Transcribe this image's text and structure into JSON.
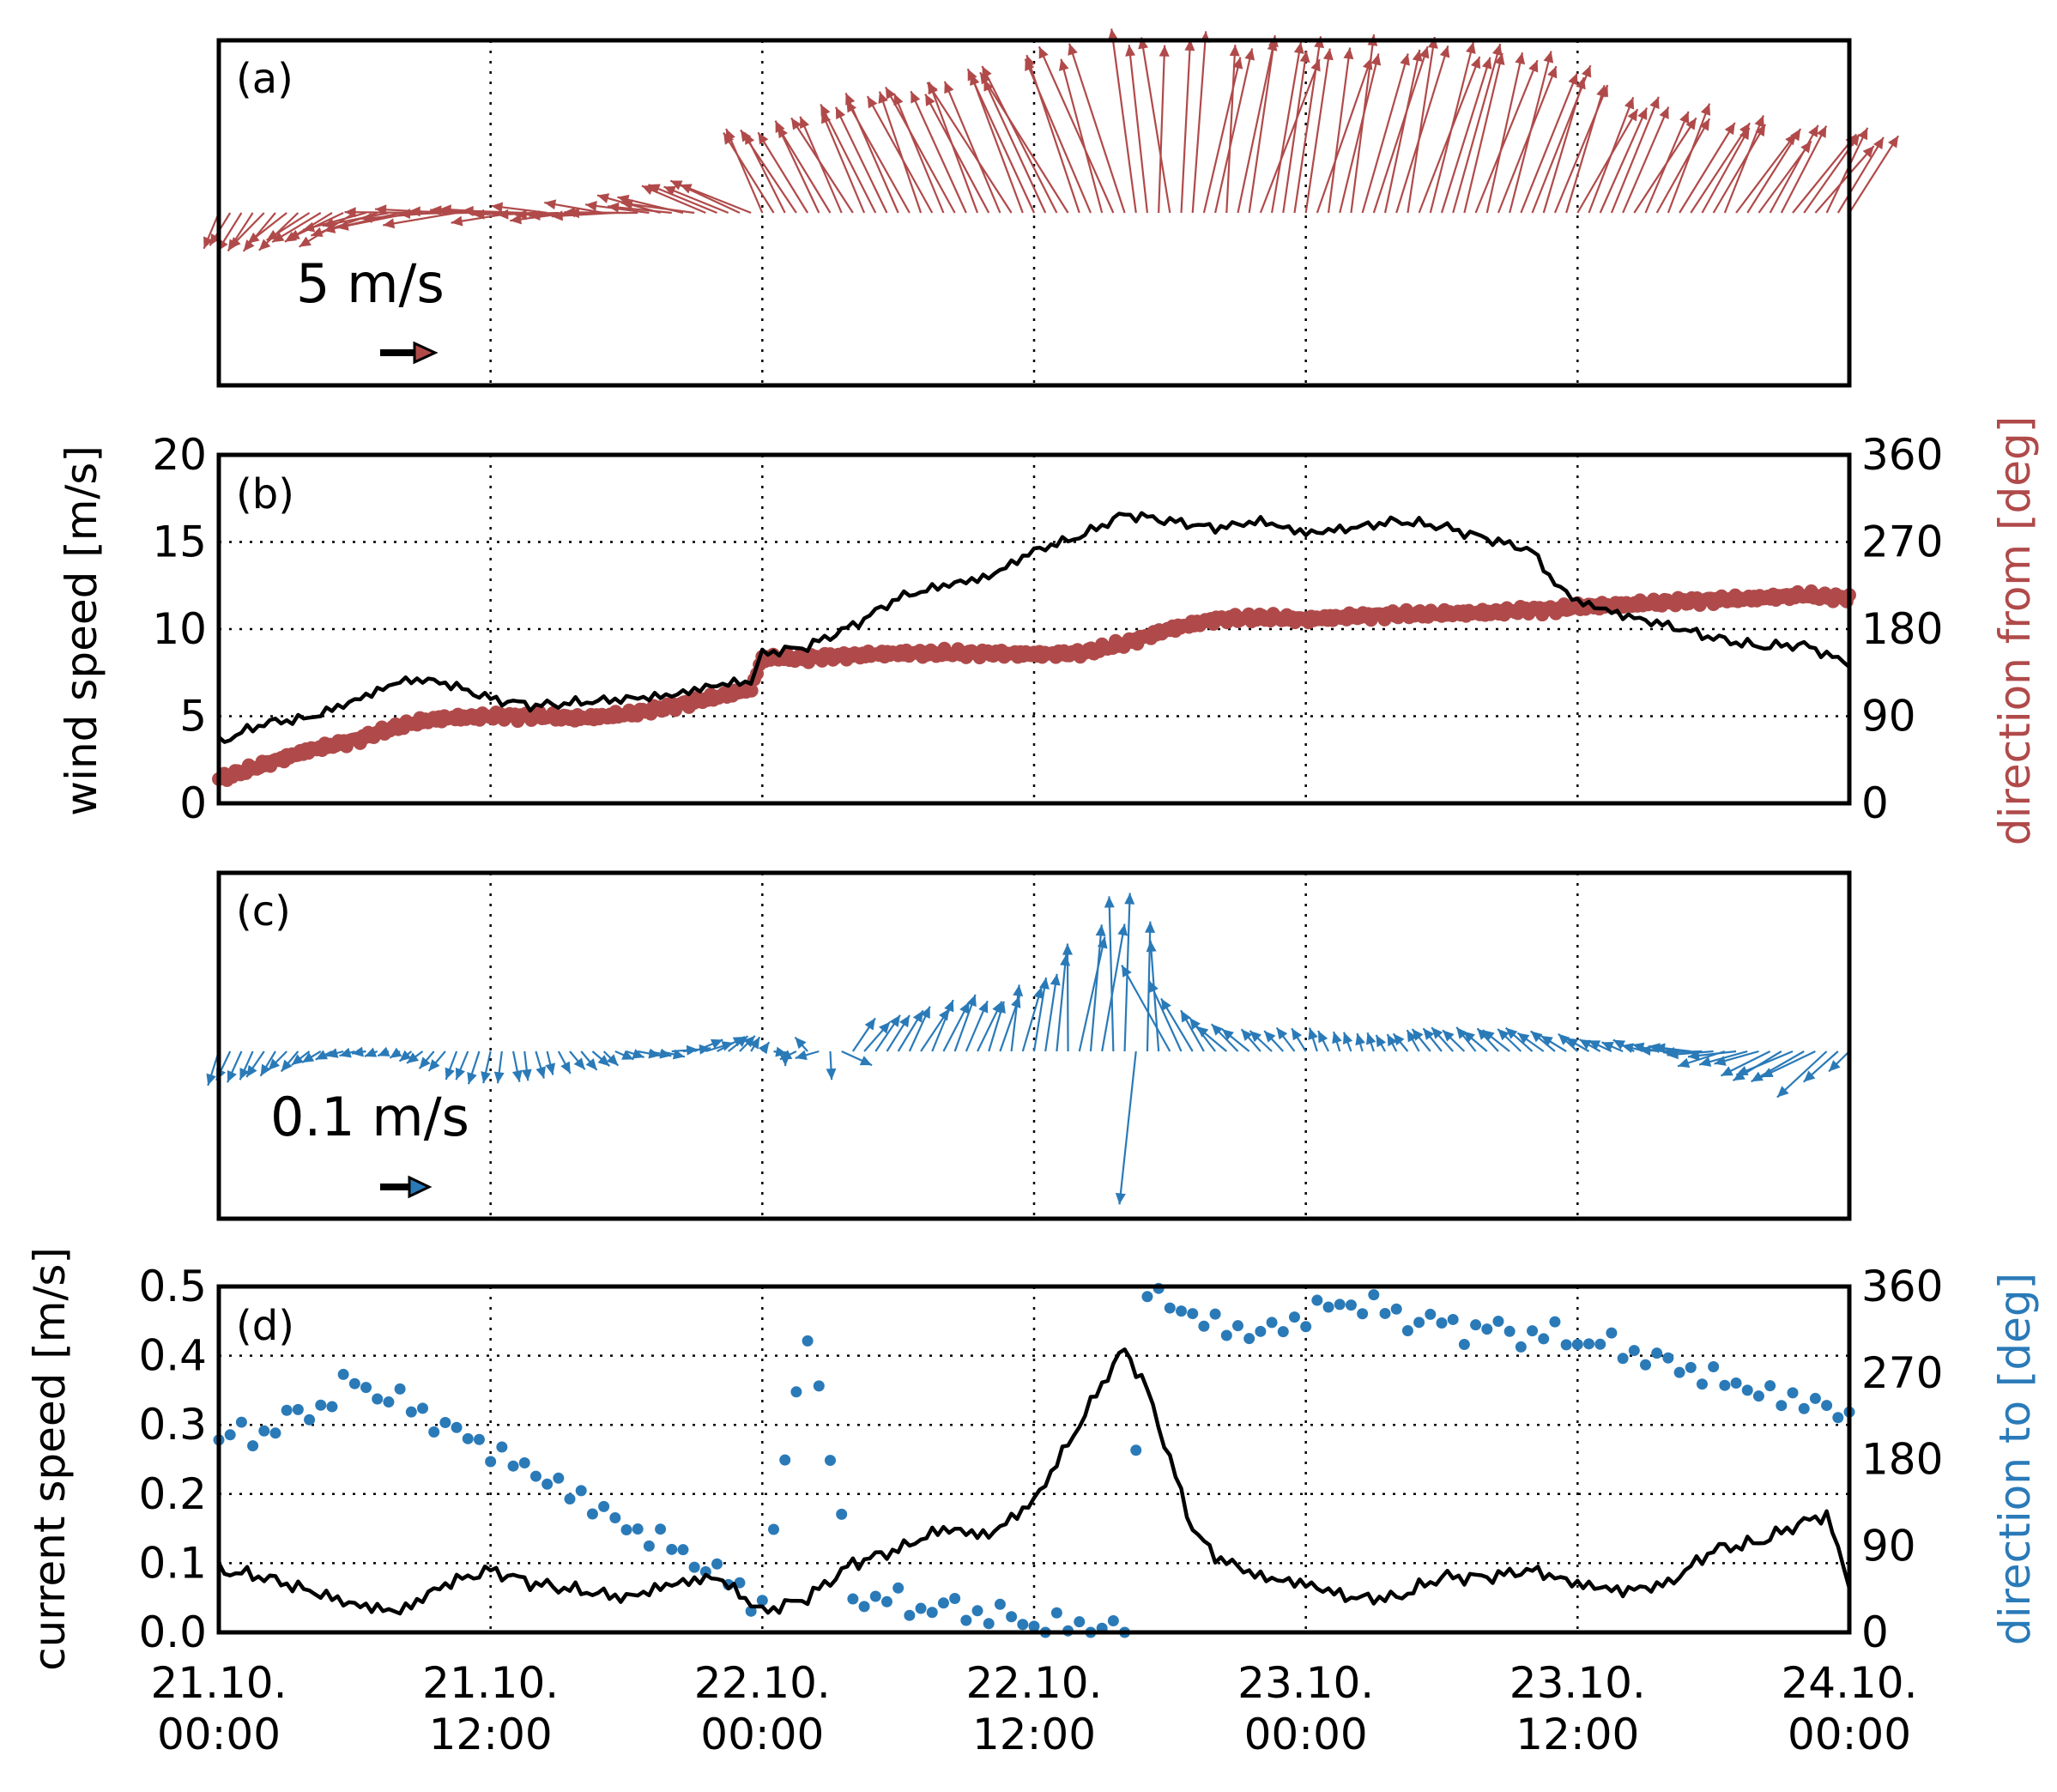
{
  "chart_data": [
    {
      "panel": "(a)",
      "type": "quiver",
      "quantity": "wind vector",
      "scale_label": "5 m/s",
      "scale_value": 5,
      "color": "#b04a4a",
      "note": "vectors drawn from wind speed and direction-from series in panel (b), every 30 minutes"
    },
    {
      "panel": "(b)",
      "type": "line",
      "ylabel": "wind speed [m/s]",
      "ylabel_right": "direction from [deg]",
      "ylim": [
        0,
        20
      ],
      "ylim_right": [
        0,
        360
      ],
      "yticks": [
        "0",
        "5",
        "10",
        "15",
        "20"
      ],
      "yticks_right": [
        "0",
        "90",
        "180",
        "270",
        "360"
      ],
      "x_hours": [
        0,
        2,
        4,
        6,
        8,
        9,
        10,
        12,
        14,
        16,
        18,
        20,
        22,
        23.5,
        24,
        26,
        28,
        30,
        32,
        34,
        36,
        38,
        40,
        42,
        44,
        46,
        48,
        50,
        52,
        54,
        56,
        58,
        59,
        60,
        62,
        64,
        66,
        68,
        70,
        72
      ],
      "series": [
        {
          "name": "wind speed",
          "axis": "left",
          "color": "#000000",
          "values": [
            3.5,
            4.6,
            4.9,
            5.9,
            7.0,
            7.1,
            6.9,
            6.0,
            5.6,
            5.8,
            6.0,
            6.2,
            6.8,
            7.0,
            8.6,
            9.0,
            10.2,
            11.8,
            12.5,
            13.0,
            14.5,
            15.3,
            16.6,
            16.2,
            15.8,
            16.2,
            15.5,
            15.8,
            16.2,
            15.9,
            15.2,
            14.5,
            12.6,
            11.6,
            10.8,
            10.2,
            9.5,
            9.0,
            9.1,
            8.0
          ]
        },
        {
          "name": "direction from",
          "axis": "right",
          "color": "#b04a4a",
          "values": [
            25,
            40,
            55,
            65,
            80,
            85,
            88,
            90,
            90,
            88,
            92,
            100,
            110,
            118,
            150,
            150,
            153,
            155,
            155,
            155,
            154,
            155,
            165,
            180,
            190,
            192,
            190,
            193,
            195,
            196,
            197,
            200,
            200,
            203,
            205,
            208,
            210,
            212,
            215,
            212
          ]
        }
      ]
    },
    {
      "panel": "(c)",
      "type": "quiver",
      "quantity": "current vector",
      "scale_label": "0.1 m/s",
      "scale_value": 0.1,
      "color": "#2a7ab8",
      "note": "vectors drawn from current speed and direction-to series in panel (d), every 30 minutes"
    },
    {
      "panel": "(d)",
      "type": "line",
      "ylabel": "current speed [m/s]",
      "ylabel_right": "direction to [deg]",
      "ylim": [
        0,
        0.5
      ],
      "ylim_right": [
        0,
        360
      ],
      "yticks": [
        "0.0",
        "0.1",
        "0.2",
        "0.3",
        "0.4",
        "0.5"
      ],
      "yticks_right": [
        "0",
        "90",
        "180",
        "270",
        "360"
      ],
      "x_hours": [
        0,
        2,
        4,
        6,
        8,
        10,
        12,
        14,
        16,
        18,
        20,
        22,
        24,
        26,
        28,
        30,
        32,
        34,
        36,
        38,
        39,
        40,
        41,
        42,
        43,
        44,
        46,
        48,
        50,
        52,
        54,
        56,
        58,
        60,
        62,
        64,
        66,
        68,
        70,
        71,
        72
      ],
      "series": [
        {
          "name": "current speed",
          "axis": "left",
          "color": "#000000",
          "values": [
            0.09,
            0.08,
            0.06,
            0.04,
            0.03,
            0.07,
            0.09,
            0.07,
            0.06,
            0.05,
            0.07,
            0.08,
            0.03,
            0.05,
            0.1,
            0.12,
            0.15,
            0.14,
            0.19,
            0.3,
            0.36,
            0.41,
            0.35,
            0.25,
            0.15,
            0.11,
            0.08,
            0.07,
            0.05,
            0.05,
            0.08,
            0.08,
            0.09,
            0.07,
            0.06,
            0.07,
            0.12,
            0.13,
            0.16,
            0.17,
            0.07
          ]
        },
        {
          "name": "direction to",
          "axis": "right",
          "color": "#2a7ab8",
          "values": [
            200,
            210,
            230,
            260,
            240,
            215,
            190,
            165,
            140,
            110,
            90,
            60,
            30,
            320,
            40,
            30,
            25,
            20,
            8,
            6,
            5,
            5,
            360,
            340,
            330,
            320,
            310,
            330,
            345,
            330,
            320,
            315,
            310,
            305,
            295,
            280,
            265,
            250,
            240,
            235,
            225
          ]
        }
      ]
    }
  ],
  "xaxis": {
    "xlim_hours": [
      0,
      72
    ],
    "ticks": [
      {
        "line1": "21.10.",
        "line2": "00:00"
      },
      {
        "line1": "21.10.",
        "line2": "12:00"
      },
      {
        "line1": "22.10.",
        "line2": "00:00"
      },
      {
        "line1": "22.10.",
        "line2": "12:00"
      },
      {
        "line1": "23.10.",
        "line2": "00:00"
      },
      {
        "line1": "23.10.",
        "line2": "12:00"
      },
      {
        "line1": "24.10.",
        "line2": "00:00"
      }
    ]
  }
}
